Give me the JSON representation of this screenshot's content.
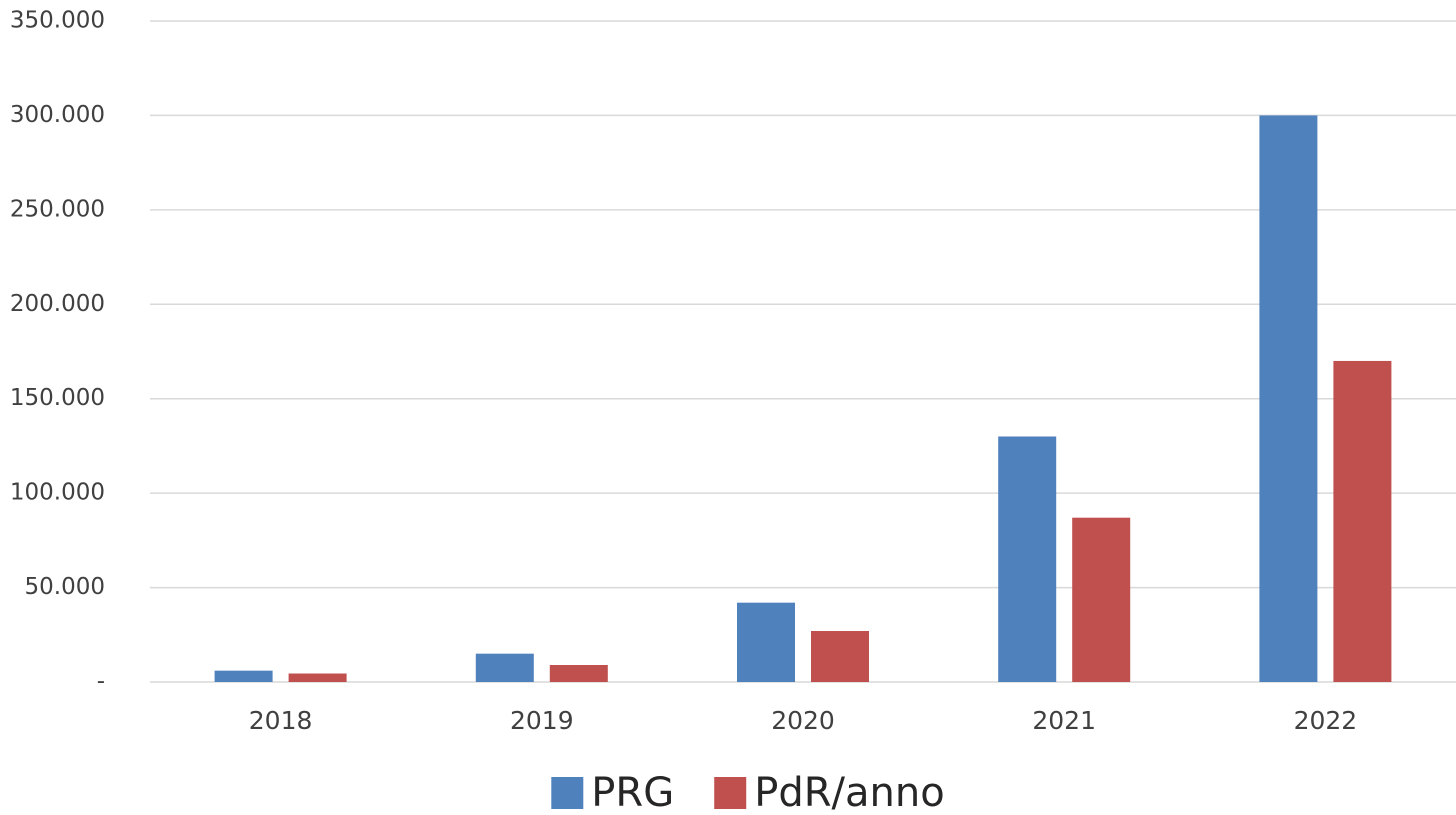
{
  "chart_data": {
    "type": "bar",
    "categories": [
      "2018",
      "2019",
      "2020",
      "2021",
      "2022"
    ],
    "series": [
      {
        "name": "PRG",
        "color": "#4f81bd",
        "values": [
          6000,
          15000,
          42000,
          130000,
          300000
        ]
      },
      {
        "name": "PdR/anno",
        "color": "#c0504d",
        "values": [
          4500,
          9000,
          27000,
          87000,
          170000
        ]
      }
    ],
    "ylim": [
      0,
      350000
    ],
    "yticks": [
      {
        "value": 0,
        "label": "-"
      },
      {
        "value": 50000,
        "label": "50.000"
      },
      {
        "value": 100000,
        "label": "100.000"
      },
      {
        "value": 150000,
        "label": "150.000"
      },
      {
        "value": 200000,
        "label": "200.000"
      },
      {
        "value": 250000,
        "label": "250.000"
      },
      {
        "value": 300000,
        "label": "300.000"
      },
      {
        "value": 350000,
        "label": "350.000"
      }
    ],
    "grid": true,
    "legend": "bottom"
  }
}
